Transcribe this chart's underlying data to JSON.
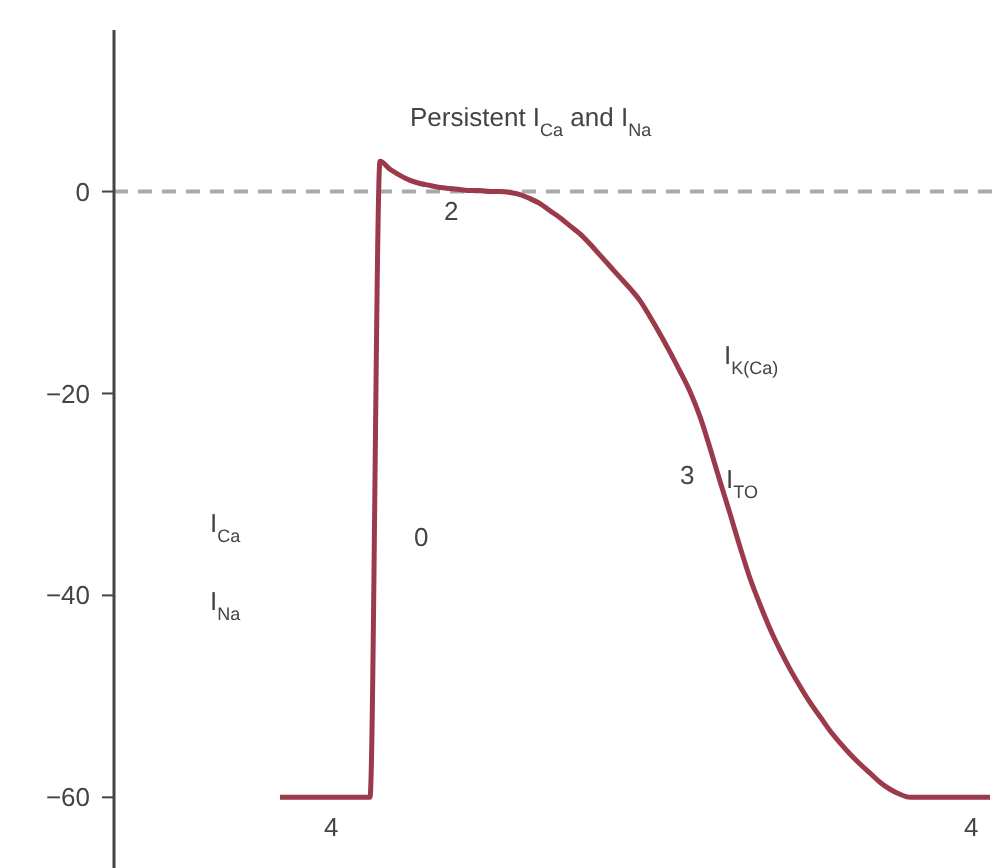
{
  "chart_data": {
    "type": "line",
    "categories": [
      null,
      null,
      null,
      null,
      null,
      null,
      null,
      null,
      null,
      null,
      null,
      null,
      null,
      null,
      null,
      null,
      null,
      null,
      null,
      null,
      null,
      null,
      null,
      null,
      null,
      null,
      null,
      null,
      null,
      null,
      null,
      null,
      null,
      null,
      null,
      null,
      null,
      null,
      null,
      null,
      null,
      null,
      null,
      null,
      null,
      null,
      null,
      null,
      null,
      null,
      null,
      null,
      null,
      null,
      null,
      null,
      null,
      null,
      null,
      null,
      null,
      null,
      null,
      null,
      null,
      null,
      null,
      null,
      null,
      null,
      null,
      null
    ],
    "series": [
      {
        "color": "#9b3a4a",
        "values": [
          -60,
          -60,
          -60,
          -60,
          -60,
          -60,
          -60,
          -60,
          -60,
          -60,
          3,
          2.2,
          1.6,
          1.1,
          0.8,
          0.6,
          0.4,
          0.3,
          0.2,
          0.1,
          0.1,
          0,
          0,
          -0.1,
          -0.3,
          -0.7,
          -1.2,
          -1.9,
          -2.6,
          -3.4,
          -4.2,
          -5.2,
          -6.3,
          -7.4,
          -8.5,
          -9.6,
          -10.8,
          -12.4,
          -14.1,
          -15.9,
          -17.8,
          -19.8,
          -22.3,
          -25.4,
          -28.7,
          -31.9,
          -35.2,
          -38.3,
          -40.9,
          -43.3,
          -45.4,
          -47.3,
          -49,
          -50.6,
          -52,
          -53.4,
          -54.6,
          -55.7,
          -56.7,
          -57.6,
          -58.5,
          -59.2,
          -59.7,
          -60,
          -60,
          -60,
          -60,
          -60,
          -60,
          -60,
          -60,
          -60
        ]
      }
    ],
    "ylim": [
      -67,
      16
    ],
    "yticks": [
      0,
      -20,
      -40,
      -60
    ],
    "tick_labels": "y",
    "line_style": "solid",
    "ref_lines": [
      {
        "axis": "y",
        "value": 0,
        "color": "#aaaaaa",
        "line_style": "dashed"
      }
    ],
    "annotations": [
      "Persistent I$_{Ca}$ and I$_{Na}$",
      "2",
      "I$_{K(Ca)}$",
      "3",
      "I$_{TO}$",
      "0",
      "I$_{Ca}$",
      "I$_{Na}$",
      "4",
      "4"
    ]
  }
}
